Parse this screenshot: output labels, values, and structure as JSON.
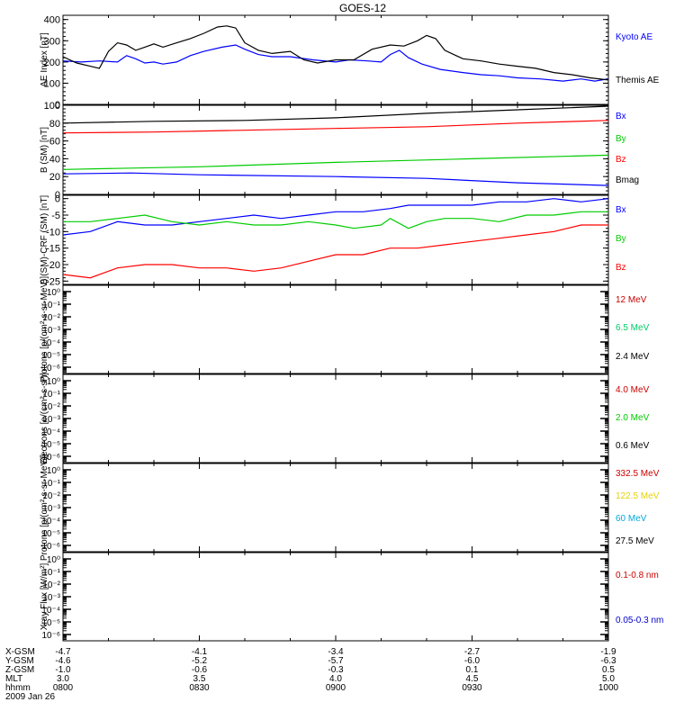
{
  "title": "GOES-12",
  "chart_data": [
    {
      "id": "ae",
      "type": "line",
      "ylabel": "AE Index [nT]",
      "ylim": [
        0,
        420
      ],
      "yticks": [
        "0",
        "100",
        "200",
        "300",
        "400"
      ],
      "ytick_values": [
        0,
        100,
        200,
        300,
        400
      ],
      "x_minutes": [
        0,
        120
      ],
      "series": [
        {
          "name": "Kyoto AE",
          "color": "#0000ff",
          "points": [
            [
              0,
              205
            ],
            [
              4,
              200
            ],
            [
              8,
              205
            ],
            [
              12,
              200
            ],
            [
              14,
              230
            ],
            [
              16,
              215
            ],
            [
              18,
              195
            ],
            [
              20,
              200
            ],
            [
              22,
              190
            ],
            [
              25,
              200
            ],
            [
              28,
              230
            ],
            [
              31,
              250
            ],
            [
              35,
              270
            ],
            [
              38,
              280
            ],
            [
              40,
              260
            ],
            [
              43,
              235
            ],
            [
              46,
              225
            ],
            [
              50,
              225
            ],
            [
              55,
              210
            ],
            [
              60,
              200
            ],
            [
              63,
              210
            ],
            [
              67,
              205
            ],
            [
              70,
              200
            ],
            [
              72,
              235
            ],
            [
              74,
              255
            ],
            [
              76,
              220
            ],
            [
              79,
              190
            ],
            [
              83,
              165
            ],
            [
              88,
              150
            ],
            [
              92,
              140
            ],
            [
              96,
              135
            ],
            [
              100,
              125
            ],
            [
              105,
              120
            ],
            [
              110,
              110
            ],
            [
              114,
              120
            ],
            [
              117,
              110
            ],
            [
              120,
              120
            ]
          ]
        },
        {
          "name": "Themis AE",
          "color": "#000000",
          "points": [
            [
              0,
              225
            ],
            [
              3,
              195
            ],
            [
              6,
              180
            ],
            [
              8,
              170
            ],
            [
              10,
              250
            ],
            [
              12,
              290
            ],
            [
              14,
              280
            ],
            [
              16,
              255
            ],
            [
              18,
              270
            ],
            [
              20,
              285
            ],
            [
              22,
              270
            ],
            [
              25,
              290
            ],
            [
              28,
              310
            ],
            [
              31,
              335
            ],
            [
              34,
              365
            ],
            [
              36,
              370
            ],
            [
              38,
              360
            ],
            [
              40,
              290
            ],
            [
              43,
              255
            ],
            [
              46,
              240
            ],
            [
              50,
              250
            ],
            [
              53,
              210
            ],
            [
              56,
              195
            ],
            [
              60,
              210
            ],
            [
              64,
              210
            ],
            [
              68,
              260
            ],
            [
              72,
              280
            ],
            [
              75,
              275
            ],
            [
              78,
              300
            ],
            [
              80,
              325
            ],
            [
              82,
              310
            ],
            [
              84,
              255
            ],
            [
              88,
              215
            ],
            [
              92,
              205
            ],
            [
              96,
              190
            ],
            [
              100,
              180
            ],
            [
              104,
              170
            ],
            [
              108,
              150
            ],
            [
              112,
              140
            ],
            [
              116,
              125
            ],
            [
              120,
              115
            ]
          ]
        }
      ]
    },
    {
      "id": "bsm",
      "type": "line",
      "ylabel": "B (SM) [nT]",
      "ylim": [
        0,
        100
      ],
      "yticks": [
        "0",
        "20",
        "40",
        "60",
        "80",
        "100"
      ],
      "ytick_values": [
        0,
        20,
        40,
        60,
        80,
        100
      ],
      "x_minutes": [
        0,
        120
      ],
      "series": [
        {
          "name": "Bx",
          "color": "#0000ff",
          "points": [
            [
              0,
              23
            ],
            [
              15,
              24
            ],
            [
              30,
              22
            ],
            [
              60,
              20
            ],
            [
              80,
              18
            ],
            [
              100,
              13
            ],
            [
              120,
              10
            ]
          ]
        },
        {
          "name": "By",
          "color": "#00cc00",
          "points": [
            [
              0,
              28
            ],
            [
              30,
              31
            ],
            [
              60,
              36
            ],
            [
              90,
              40
            ],
            [
              120,
              44
            ]
          ]
        },
        {
          "name": "Bz",
          "color": "#ff0000",
          "points": [
            [
              0,
              69
            ],
            [
              20,
              70
            ],
            [
              40,
              72
            ],
            [
              60,
              74
            ],
            [
              80,
              76
            ],
            [
              100,
              80
            ],
            [
              120,
              83
            ]
          ]
        },
        {
          "name": "Bmag",
          "color": "#000000",
          "points": [
            [
              0,
              80
            ],
            [
              20,
              82
            ],
            [
              40,
              83
            ],
            [
              60,
              86
            ],
            [
              80,
              91
            ],
            [
              100,
              95
            ],
            [
              120,
              99
            ]
          ]
        }
      ]
    },
    {
      "id": "bsm-crf",
      "type": "line",
      "ylabel": "B (SM)-CRF (SM) [nT]",
      "ylim": [
        -26,
        1
      ],
      "yticks": [
        "0",
        "-5",
        "-10",
        "-15",
        "-20",
        "-25"
      ],
      "ytick_values": [
        0,
        -5,
        -10,
        -15,
        -20,
        -25
      ],
      "x_minutes": [
        0,
        120
      ],
      "series": [
        {
          "name": "Bx",
          "color": "#0000ff",
          "points": [
            [
              0,
              -11
            ],
            [
              6,
              -10
            ],
            [
              12,
              -7
            ],
            [
              18,
              -8
            ],
            [
              24,
              -8
            ],
            [
              30,
              -7
            ],
            [
              36,
              -6
            ],
            [
              42,
              -5
            ],
            [
              48,
              -6
            ],
            [
              54,
              -5
            ],
            [
              60,
              -4
            ],
            [
              66,
              -4
            ],
            [
              72,
              -3
            ],
            [
              76,
              -2
            ],
            [
              84,
              -2
            ],
            [
              90,
              -2
            ],
            [
              96,
              -1
            ],
            [
              102,
              -1
            ],
            [
              108,
              0
            ],
            [
              114,
              -1
            ],
            [
              120,
              0
            ]
          ]
        },
        {
          "name": "By",
          "color": "#00cc00",
          "points": [
            [
              0,
              -7
            ],
            [
              6,
              -7
            ],
            [
              12,
              -6
            ],
            [
              18,
              -5
            ],
            [
              24,
              -7
            ],
            [
              30,
              -8
            ],
            [
              36,
              -7
            ],
            [
              42,
              -8
            ],
            [
              48,
              -8
            ],
            [
              54,
              -7
            ],
            [
              60,
              -8
            ],
            [
              64,
              -9
            ],
            [
              70,
              -8
            ],
            [
              72,
              -6
            ],
            [
              76,
              -9
            ],
            [
              80,
              -7
            ],
            [
              84,
              -6
            ],
            [
              90,
              -6
            ],
            [
              96,
              -7
            ],
            [
              102,
              -5
            ],
            [
              108,
              -5
            ],
            [
              114,
              -4
            ],
            [
              120,
              -4
            ]
          ]
        },
        {
          "name": "Bz",
          "color": "#ff0000",
          "points": [
            [
              0,
              -23
            ],
            [
              6,
              -24
            ],
            [
              12,
              -21
            ],
            [
              18,
              -20
            ],
            [
              24,
              -20
            ],
            [
              30,
              -21
            ],
            [
              36,
              -21
            ],
            [
              42,
              -22
            ],
            [
              48,
              -21
            ],
            [
              54,
              -19
            ],
            [
              60,
              -17
            ],
            [
              66,
              -17
            ],
            [
              72,
              -15
            ],
            [
              78,
              -15
            ],
            [
              84,
              -14
            ],
            [
              90,
              -13
            ],
            [
              96,
              -12
            ],
            [
              102,
              -11
            ],
            [
              108,
              -10
            ],
            [
              114,
              -8
            ],
            [
              120,
              -8
            ]
          ]
        }
      ]
    },
    {
      "id": "protons-low",
      "type": "line",
      "ylabel": "Protons [p/(cm²-s-sr-MeV)]",
      "log": true,
      "yticks": [
        "10⁰",
        "10⁻¹",
        "10⁻²",
        "10⁻³",
        "10⁻⁴",
        "10⁻⁵",
        "10⁻⁶"
      ],
      "ytick_exponents": [
        0,
        -1,
        -2,
        -3,
        -4,
        -5,
        -6
      ],
      "ylim_exp": [
        -6.5,
        0.5
      ],
      "series": [
        {
          "name": "12 MeV",
          "color": "#cc0000",
          "points": []
        },
        {
          "name": "6.5 MeV",
          "color": "#00cc66",
          "points": []
        },
        {
          "name": "2.4 MeV",
          "color": "#000000",
          "points": []
        }
      ]
    },
    {
      "id": "electrons",
      "type": "line",
      "ylabel": "Electrons [e/(cm²-s-sr)]",
      "log": true,
      "yticks": [
        "10⁰",
        "10⁻¹",
        "10⁻²",
        "10⁻³",
        "10⁻⁴",
        "10⁻⁵",
        "10⁻⁶"
      ],
      "ytick_exponents": [
        0,
        -1,
        -2,
        -3,
        -4,
        -5,
        -6
      ],
      "ylim_exp": [
        -6.5,
        0.5
      ],
      "series": [
        {
          "name": "4.0 MeV",
          "color": "#cc0000",
          "points": []
        },
        {
          "name": "2.0 MeV",
          "color": "#00cc00",
          "points": []
        },
        {
          "name": "0.6 MeV",
          "color": "#000000",
          "points": []
        }
      ]
    },
    {
      "id": "protons-high",
      "type": "line",
      "ylabel": "Protons [p/(cm²-s-sr-MeV)]",
      "log": true,
      "yticks": [
        "10⁰",
        "10⁻¹",
        "10⁻²",
        "10⁻³",
        "10⁻⁴",
        "10⁻⁵",
        "10⁻⁶"
      ],
      "ytick_exponents": [
        0,
        -1,
        -2,
        -3,
        -4,
        -5,
        -6
      ],
      "ylim_exp": [
        -6.5,
        0.5
      ],
      "series": [
        {
          "name": "332.5 MeV",
          "color": "#cc0000",
          "points": []
        },
        {
          "name": "122.5 MeV",
          "color": "#e6d200",
          "points": []
        },
        {
          "name": "60 MeV",
          "color": "#00aadd",
          "points": []
        },
        {
          "name": "27.5 MeV",
          "color": "#000000",
          "points": []
        }
      ]
    },
    {
      "id": "xray",
      "type": "line",
      "ylabel": "Xray Flux [W/m²]",
      "log": true,
      "yticks": [
        "10⁰",
        "10⁻¹",
        "10⁻²",
        "10⁻³",
        "10⁻⁴",
        "10⁻⁵",
        "10⁻⁶"
      ],
      "ytick_exponents": [
        0,
        -1,
        -2,
        -3,
        -4,
        -5,
        -6
      ],
      "ylim_exp": [
        -6.5,
        0.5
      ],
      "series": [
        {
          "name": "0.1-0.8 nm",
          "color": "#cc0000",
          "points": []
        },
        {
          "name": "0.05-0.3 nm",
          "color": "#0000cc",
          "points": []
        }
      ]
    }
  ],
  "x_axis": {
    "row_labels": [
      "X-GSM",
      "Y-GSM",
      "Z-GSM",
      "MLT",
      "hhmm"
    ],
    "columns": [
      {
        "values": [
          "-4.7",
          "-4.6",
          "-1.0",
          "3.0",
          "0800"
        ]
      },
      {
        "values": [
          "-4.1",
          "-5.2",
          "-0.6",
          "3.5",
          "0830"
        ]
      },
      {
        "values": [
          "-3.4",
          "-5.7",
          "-0.3",
          "4.0",
          "0900"
        ]
      },
      {
        "values": [
          "-2.7",
          "-6.0",
          "0.1",
          "4.5",
          "0930"
        ]
      },
      {
        "values": [
          "-1.9",
          "-6.3",
          "0.5",
          "5.0",
          "1000"
        ]
      }
    ],
    "date": "2009 Jan 26"
  }
}
